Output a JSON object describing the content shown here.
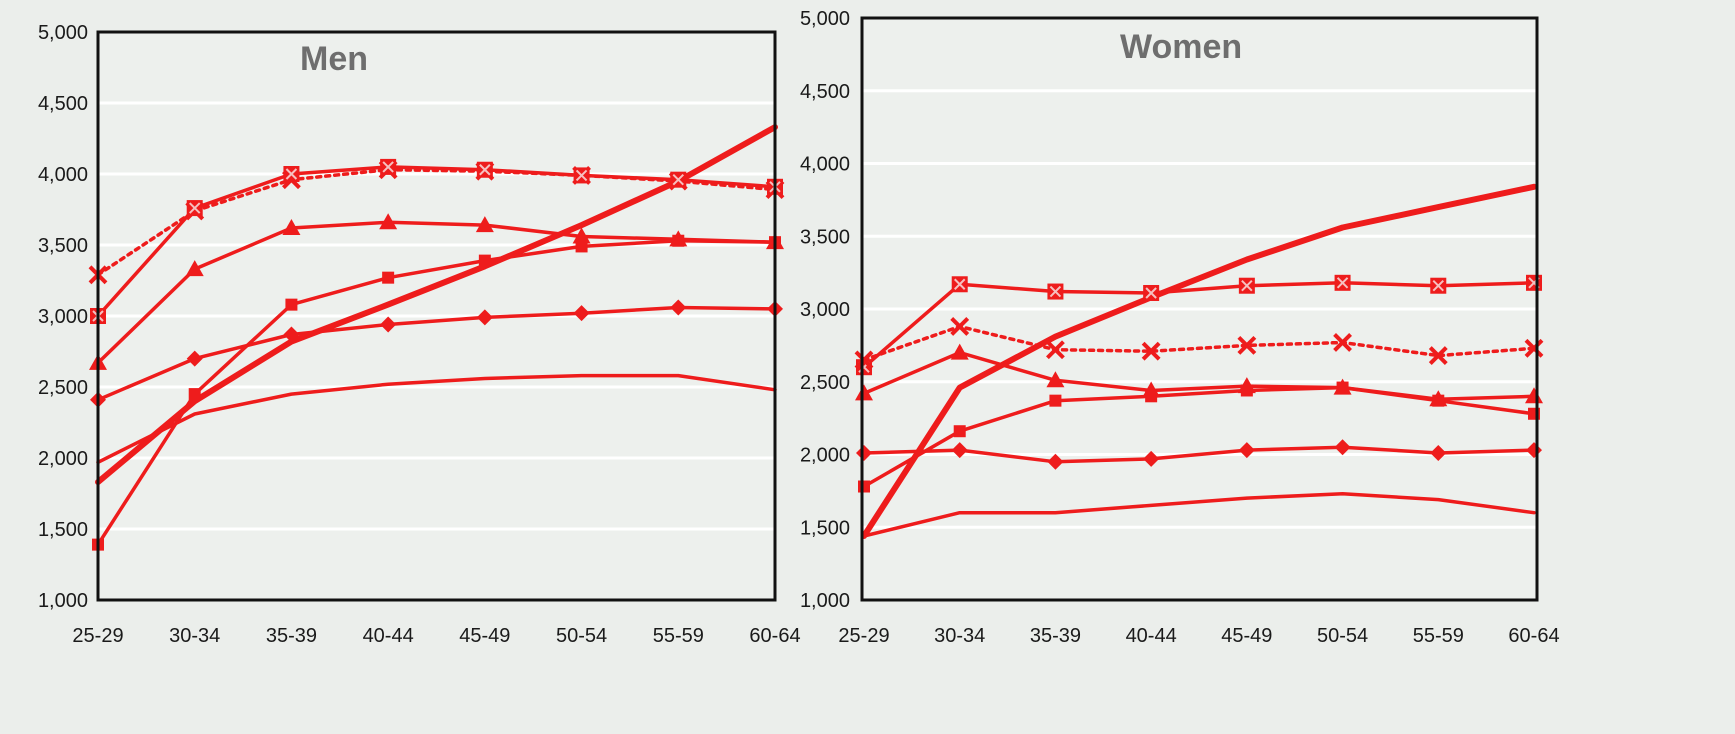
{
  "chart_data": [
    {
      "type": "line",
      "title": "Men",
      "xlabel": "",
      "ylabel": "",
      "categories": [
        "25-29",
        "30-34",
        "35-39",
        "40-44",
        "45-49",
        "50-54",
        "55-59",
        "60-64"
      ],
      "ylim": [
        1000,
        5000
      ],
      "yticks": [
        "1,000",
        "1,500",
        "2,000",
        "2,500",
        "3,000",
        "3,500",
        "4,000",
        "4,500",
        "5,000"
      ],
      "grid": true,
      "series": [
        {
          "values": [
            1830,
            2400,
            2820,
            3080,
            3350,
            3640,
            3950,
            4330
          ],
          "marker": "none",
          "style": "thick",
          "color": "#ee1c1c"
        },
        {
          "values": [
            3290,
            3740,
            3960,
            4030,
            4020,
            3990,
            3950,
            3890
          ],
          "marker": "x",
          "style": "dotted",
          "color": "#ee1c1c"
        },
        {
          "values": [
            3000,
            3760,
            4000,
            4050,
            4030,
            3990,
            3960,
            3910
          ],
          "marker": "square",
          "style": "solid",
          "color": "#ee1c1c"
        },
        {
          "values": [
            2670,
            3330,
            3620,
            3660,
            3640,
            3560,
            3540,
            3520
          ],
          "marker": "triangle",
          "style": "solid",
          "color": "#ee1c1c"
        },
        {
          "values": [
            1390,
            2450,
            3080,
            3270,
            3390,
            3490,
            3530,
            3520
          ],
          "marker": "square-small",
          "style": "solid",
          "color": "#ee1c1c"
        },
        {
          "values": [
            2410,
            2700,
            2870,
            2940,
            2990,
            3020,
            3060,
            3050
          ],
          "marker": "circle",
          "style": "solid",
          "color": "#ee1c1c"
        },
        {
          "values": [
            1970,
            2310,
            2450,
            2520,
            2560,
            2580,
            2580,
            2480
          ],
          "marker": "none",
          "style": "solid",
          "color": "#ee1c1c"
        }
      ]
    },
    {
      "type": "line",
      "title": "Women",
      "xlabel": "",
      "ylabel": "",
      "categories": [
        "25-29",
        "30-34",
        "35-39",
        "40-44",
        "45-49",
        "50-54",
        "55-59",
        "60-64"
      ],
      "ylim": [
        1000,
        5000
      ],
      "yticks": [
        "1,000",
        "1,500",
        "2,000",
        "2,500",
        "3,000",
        "3,500",
        "4,000",
        "4,500",
        "5,000"
      ],
      "grid": true,
      "series": [
        {
          "values": [
            1440,
            2460,
            2810,
            3080,
            3340,
            3560,
            3700,
            3840
          ],
          "marker": "none",
          "style": "thick",
          "color": "#ee1c1c"
        },
        {
          "values": [
            2600,
            3170,
            3120,
            3110,
            3160,
            3180,
            3160,
            3180
          ],
          "marker": "square",
          "style": "solid",
          "color": "#ee1c1c"
        },
        {
          "values": [
            2650,
            2880,
            2720,
            2710,
            2750,
            2770,
            2680,
            2730
          ],
          "marker": "x",
          "style": "dotted",
          "color": "#ee1c1c"
        },
        {
          "values": [
            2420,
            2700,
            2510,
            2440,
            2470,
            2460,
            2380,
            2400
          ],
          "marker": "triangle",
          "style": "solid",
          "color": "#ee1c1c"
        },
        {
          "values": [
            1780,
            2160,
            2370,
            2400,
            2440,
            2460,
            2370,
            2280
          ],
          "marker": "square-small",
          "style": "solid",
          "color": "#ee1c1c"
        },
        {
          "values": [
            2010,
            2030,
            1950,
            1970,
            2030,
            2050,
            2010,
            2030
          ],
          "marker": "circle",
          "style": "solid",
          "color": "#ee1c1c"
        },
        {
          "values": [
            1440,
            1600,
            1600,
            1650,
            1700,
            1730,
            1690,
            1600
          ],
          "marker": "none",
          "style": "solid",
          "color": "#ee1c1c"
        }
      ]
    }
  ]
}
